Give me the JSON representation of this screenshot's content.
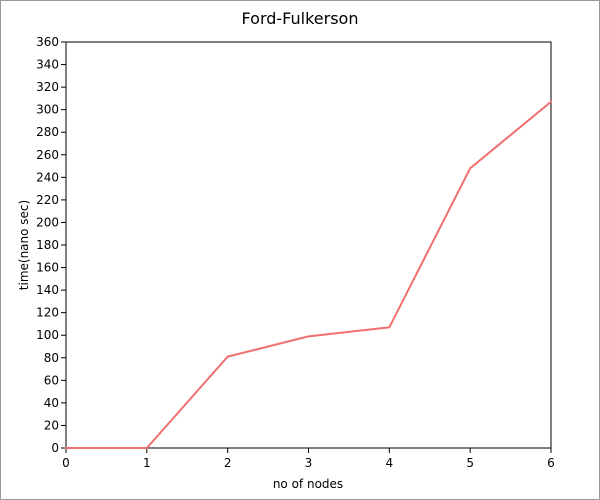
{
  "chart_data": {
    "type": "line",
    "title": "Ford-Fulkerson",
    "xlabel": "no of nodes",
    "ylabel": "time(nano sec)",
    "x": [
      0,
      1,
      2,
      3,
      4,
      5,
      6
    ],
    "series": [
      {
        "values": [
          0,
          0,
          81,
          99,
          107,
          248,
          307
        ],
        "color": "#f07070"
      }
    ],
    "xlim": [
      0,
      6
    ],
    "ylim": [
      0,
      360
    ],
    "xticks": [
      "0",
      "1",
      "2",
      "3",
      "4",
      "5",
      "6"
    ],
    "yticks": [
      "0",
      "20",
      "40",
      "60",
      "80",
      "100",
      "120",
      "140",
      "160",
      "180",
      "200",
      "220",
      "240",
      "260",
      "280",
      "300",
      "320",
      "340",
      "360"
    ],
    "grid": false,
    "legend": "none"
  }
}
